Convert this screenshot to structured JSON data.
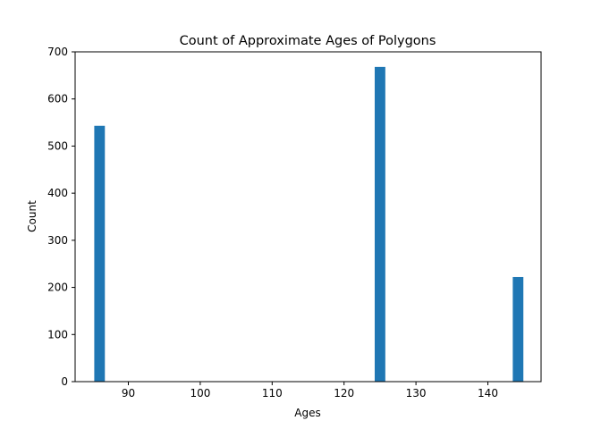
{
  "chart_data": {
    "type": "bar",
    "title": "Count of Approximate Ages of Polygons",
    "xlabel": "Ages",
    "ylabel": "Count",
    "xlim": [
      82.6,
      147.4
    ],
    "ylim": [
      0,
      700
    ],
    "xticks": [
      90,
      100,
      110,
      120,
      130,
      140
    ],
    "yticks": [
      0,
      100,
      200,
      300,
      400,
      500,
      600,
      700
    ],
    "bin_width": 1.475,
    "bars": [
      {
        "x": 86.0,
        "value": 543
      },
      {
        "x": 125.0,
        "value": 668
      },
      {
        "x": 144.2,
        "value": 222
      }
    ],
    "grid": false,
    "bar_color": "#1f77b4"
  }
}
